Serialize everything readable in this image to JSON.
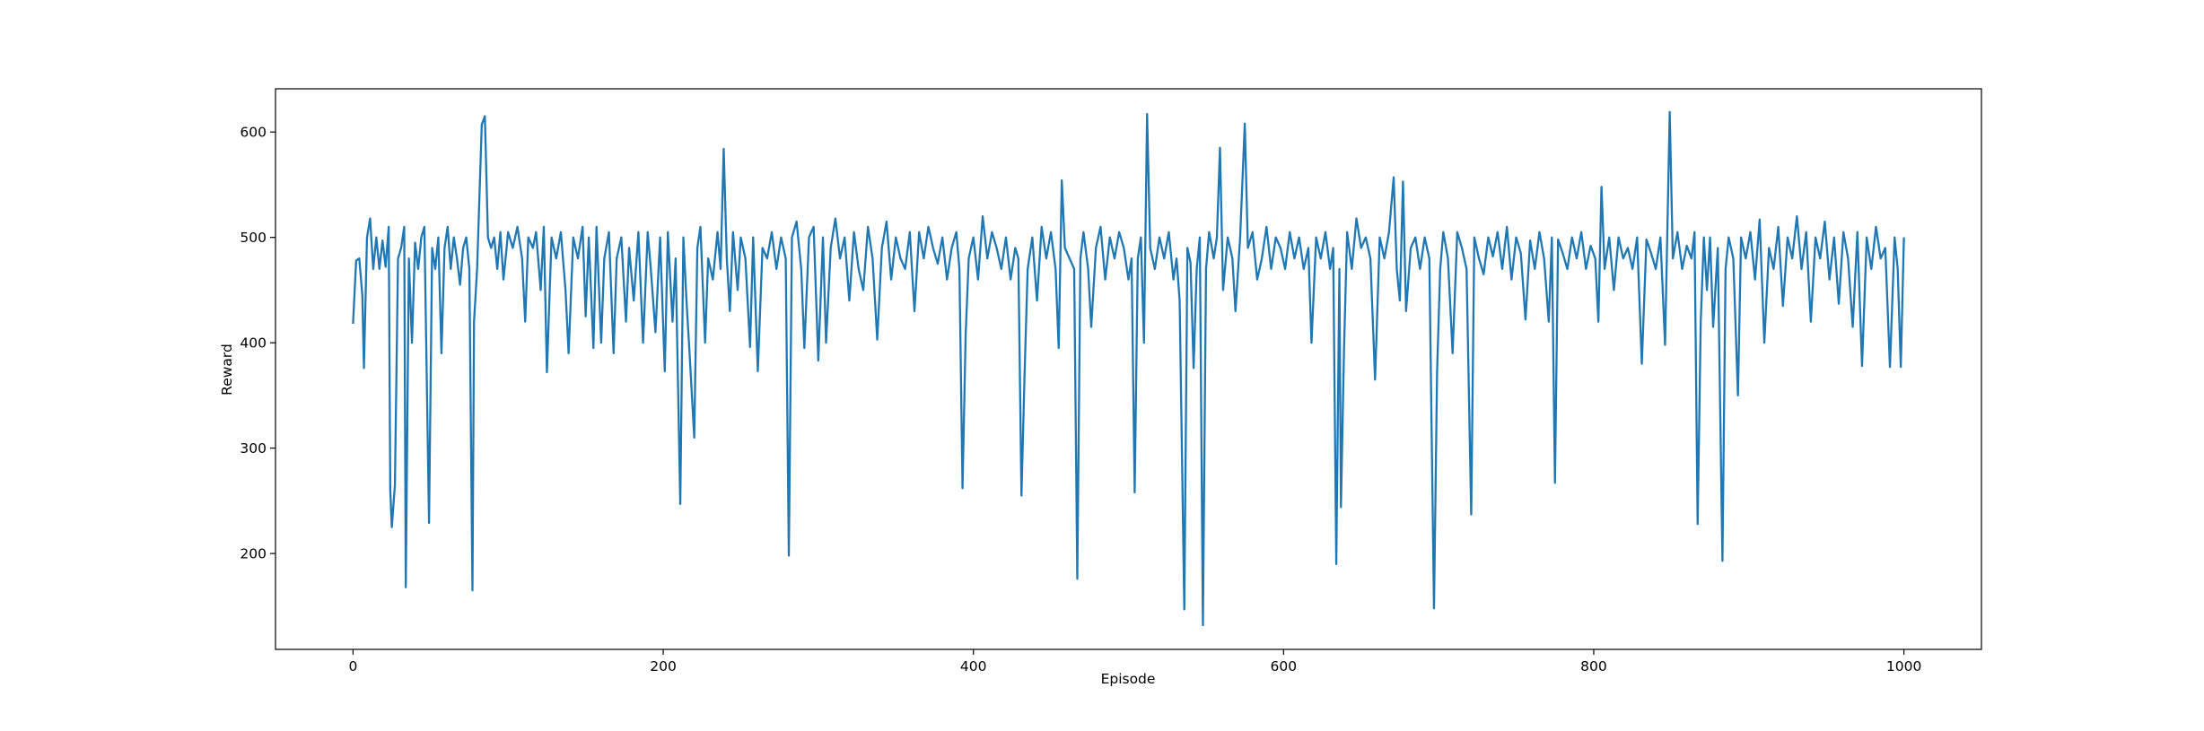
{
  "chart_data": {
    "type": "line",
    "x_label": "Episode",
    "y_label": "Reward",
    "x": [
      0,
      2,
      4,
      6,
      7,
      9,
      11,
      13,
      15,
      17,
      19,
      21,
      23,
      24,
      25,
      27,
      29,
      31,
      33,
      34,
      36,
      38,
      40,
      42,
      44,
      46,
      49,
      51,
      53,
      55,
      57,
      59,
      61,
      63,
      65,
      67,
      69,
      71,
      73,
      75,
      77,
      78,
      80,
      83,
      85,
      87,
      89,
      91,
      93,
      95,
      97,
      100,
      103,
      106,
      109,
      111,
      113,
      116,
      118,
      121,
      123,
      125,
      128,
      131,
      134,
      137,
      139,
      142,
      145,
      148,
      150,
      152,
      155,
      157,
      160,
      162,
      165,
      168,
      170,
      173,
      176,
      178,
      181,
      184,
      187,
      190,
      192,
      195,
      198,
      201,
      203,
      206,
      208,
      211,
      213,
      215,
      217,
      220,
      222,
      224,
      227,
      229,
      232,
      235,
      237,
      239,
      241,
      243,
      245,
      248,
      250,
      253,
      256,
      258,
      261,
      264,
      267,
      270,
      273,
      276,
      279,
      281,
      283,
      286,
      289,
      291,
      294,
      297,
      300,
      303,
      305,
      308,
      311,
      314,
      317,
      320,
      323,
      326,
      329,
      332,
      335,
      338,
      341,
      344,
      347,
      350,
      353,
      356,
      359,
      362,
      365,
      368,
      371,
      374,
      377,
      380,
      383,
      386,
      389,
      391,
      393,
      395,
      397,
      400,
      403,
      406,
      409,
      412,
      415,
      418,
      421,
      424,
      427,
      429,
      431,
      433,
      435,
      438,
      441,
      444,
      447,
      450,
      453,
      455,
      457,
      459,
      462,
      465,
      467,
      469,
      471,
      474,
      476,
      479,
      482,
      485,
      488,
      491,
      494,
      497,
      500,
      502,
      504,
      506,
      508,
      510,
      512,
      514,
      517,
      520,
      523,
      526,
      529,
      531,
      533,
      536,
      538,
      540,
      542,
      544,
      546,
      548,
      550,
      552,
      555,
      557,
      559,
      561,
      564,
      567,
      569,
      572,
      575,
      577,
      580,
      583,
      586,
      589,
      592,
      595,
      598,
      601,
      604,
      607,
      610,
      613,
      616,
      618,
      621,
      624,
      627,
      630,
      632,
      634,
      636,
      637,
      639,
      641,
      644,
      647,
      650,
      653,
      656,
      659,
      662,
      665,
      668,
      671,
      673,
      675,
      677,
      679,
      682,
      685,
      688,
      691,
      694,
      697,
      699,
      701,
      703,
      706,
      709,
      712,
      715,
      718,
      721,
      723,
      726,
      729,
      732,
      735,
      738,
      741,
      744,
      747,
      750,
      753,
      756,
      759,
      762,
      765,
      768,
      771,
      773,
      775,
      777,
      780,
      783,
      786,
      789,
      792,
      795,
      798,
      801,
      803,
      805,
      807,
      810,
      813,
      816,
      819,
      822,
      825,
      828,
      831,
      834,
      837,
      840,
      843,
      846,
      849,
      851,
      854,
      857,
      860,
      863,
      865,
      867,
      869,
      871,
      873,
      875,
      877,
      880,
      883,
      885,
      887,
      890,
      893,
      895,
      898,
      901,
      904,
      907,
      910,
      913,
      916,
      919,
      922,
      925,
      928,
      931,
      934,
      937,
      940,
      943,
      946,
      949,
      952,
      955,
      958,
      961,
      964,
      967,
      970,
      973,
      976,
      979,
      982,
      985,
      988,
      991,
      994,
      996,
      998,
      1000
    ],
    "series": [
      {
        "name": "Reward",
        "color": "#1f77b4",
        "values": [
          418,
          478,
          480,
          445,
          376,
          500,
          518,
          470,
          500,
          470,
          497,
          472,
          510,
          260,
          225,
          265,
          480,
          490,
          510,
          168,
          480,
          400,
          495,
          470,
          500,
          510,
          229,
          490,
          470,
          500,
          390,
          490,
          510,
          470,
          500,
          480,
          455,
          490,
          500,
          470,
          165,
          420,
          470,
          607,
          615,
          500,
          490,
          500,
          470,
          505,
          460,
          505,
          490,
          510,
          480,
          420,
          500,
          490,
          505,
          450,
          510,
          372,
          500,
          480,
          505,
          450,
          390,
          500,
          480,
          510,
          425,
          500,
          395,
          510,
          400,
          480,
          505,
          390,
          480,
          500,
          420,
          490,
          440,
          505,
          400,
          505,
          470,
          410,
          500,
          373,
          505,
          420,
          480,
          247,
          500,
          440,
          390,
          310,
          490,
          510,
          400,
          480,
          460,
          505,
          470,
          584,
          480,
          430,
          505,
          450,
          500,
          480,
          396,
          500,
          373,
          490,
          480,
          505,
          470,
          500,
          480,
          198,
          500,
          515,
          470,
          395,
          500,
          510,
          383,
          500,
          400,
          490,
          518,
          480,
          500,
          440,
          505,
          470,
          450,
          510,
          480,
          403,
          490,
          515,
          460,
          500,
          480,
          470,
          505,
          430,
          505,
          480,
          510,
          490,
          475,
          500,
          460,
          490,
          505,
          470,
          262,
          407,
          480,
          500,
          460,
          520,
          480,
          505,
          490,
          470,
          500,
          460,
          490,
          480,
          255,
          370,
          470,
          500,
          440,
          510,
          480,
          505,
          470,
          395,
          554,
          490,
          480,
          470,
          176,
          480,
          505,
          470,
          415,
          490,
          510,
          460,
          500,
          480,
          505,
          490,
          460,
          480,
          258,
          480,
          500,
          400,
          617,
          490,
          470,
          500,
          480,
          505,
          460,
          480,
          440,
          147,
          490,
          476,
          376,
          470,
          500,
          132,
          470,
          505,
          480,
          500,
          585,
          450,
          500,
          480,
          430,
          500,
          608,
          490,
          505,
          460,
          480,
          510,
          470,
          500,
          490,
          470,
          505,
          480,
          500,
          470,
          490,
          400,
          500,
          480,
          505,
          470,
          490,
          190,
          470,
          244,
          395,
          505,
          470,
          518,
          490,
          500,
          480,
          365,
          500,
          480,
          505,
          557,
          470,
          440,
          553,
          430,
          490,
          500,
          470,
          500,
          480,
          148,
          373,
          470,
          505,
          480,
          390,
          505,
          490,
          470,
          237,
          500,
          480,
          465,
          500,
          482,
          505,
          470,
          510,
          460,
          500,
          485,
          422,
          497,
          470,
          505,
          480,
          420,
          500,
          267,
          498,
          485,
          470,
          500,
          480,
          505,
          470,
          492,
          480,
          420,
          548,
          470,
          500,
          450,
          500,
          480,
          490,
          470,
          500,
          380,
          498,
          485,
          470,
          500,
          398,
          619,
          480,
          505,
          470,
          492,
          480,
          505,
          228,
          420,
          500,
          450,
          500,
          415,
          490,
          193,
          470,
          500,
          480,
          350,
          500,
          480,
          505,
          460,
          517,
          400,
          490,
          470,
          510,
          435,
          500,
          480,
          520,
          470,
          505,
          420,
          500,
          480,
          515,
          460,
          500,
          437,
          505,
          480,
          415,
          505,
          378,
          500,
          470,
          510,
          480,
          490,
          377,
          500,
          470,
          377,
          500
        ]
      }
    ],
    "xlim": [
      -50,
      1050
    ],
    "ylim": [
      109,
      641
    ],
    "xticks": [
      0,
      200,
      400,
      600,
      800,
      1000
    ],
    "yticks": [
      200,
      300,
      400,
      500,
      600
    ]
  }
}
